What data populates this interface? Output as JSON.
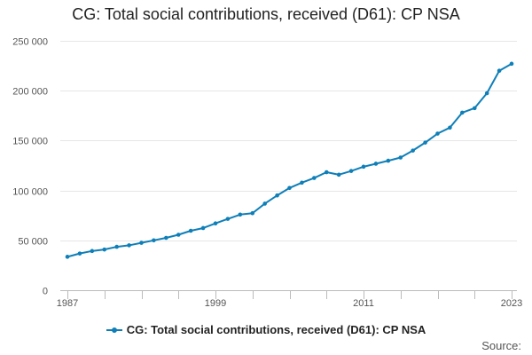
{
  "colors": {
    "series": "#0f7fb8",
    "grid": "#e6e6e6",
    "axis": "#bbbbbb",
    "tick_text": "#555555"
  },
  "chart_data": {
    "type": "line",
    "title": "CG: Total social contributions, received (D61): CP NSA",
    "xlabel": "",
    "ylabel": "",
    "xlim": [
      1987,
      2023
    ],
    "ylim": [
      0,
      250000
    ],
    "y_ticks": [
      0,
      50000,
      100000,
      150000,
      200000,
      250000
    ],
    "y_tick_labels": [
      "0",
      "50 000",
      "100 000",
      "150 000",
      "200 000",
      "250 000"
    ],
    "x_ticks": [
      1987,
      1999,
      2011,
      2023
    ],
    "x_tick_labels": [
      "1987",
      "1999",
      "2011",
      "2023"
    ],
    "grid": true,
    "series": [
      {
        "name": "CG: Total social contributions, received (D61): CP NSA",
        "x": [
          1987,
          1988,
          1989,
          1990,
          1991,
          1992,
          1993,
          1994,
          1995,
          1996,
          1997,
          1998,
          1999,
          2000,
          2001,
          2002,
          2003,
          2004,
          2005,
          2006,
          2007,
          2008,
          2009,
          2010,
          2011,
          2012,
          2013,
          2014,
          2015,
          2016,
          2017,
          2018,
          2019,
          2020,
          2021,
          2022,
          2023
        ],
        "values": [
          33500,
          36800,
          39300,
          40800,
          43500,
          45000,
          47500,
          50000,
          52500,
          55600,
          59600,
          62300,
          67000,
          71500,
          75800,
          77200,
          86800,
          95000,
          102500,
          107800,
          112500,
          118300,
          115800,
          119500,
          123800,
          126800,
          129800,
          133000,
          140000,
          148000,
          157000,
          163000,
          178000,
          182500,
          197500,
          220000,
          227000
        ]
      }
    ]
  },
  "legend": {
    "label": "CG: Total social contributions, received (D61): CP NSA",
    "position": "bottom-center"
  },
  "footer": {
    "source_label": "Source:"
  }
}
